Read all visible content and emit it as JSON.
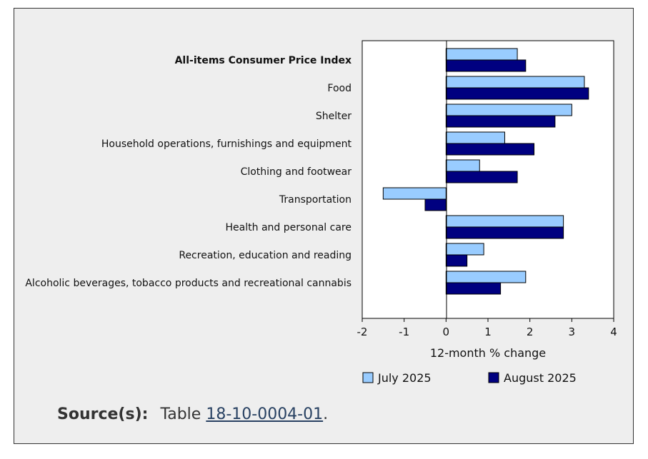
{
  "chart_data": {
    "type": "bar",
    "orientation": "horizontal",
    "categories": [
      "All-items Consumer Price Index",
      "Food",
      "Shelter",
      "Household operations, furnishings and equipment",
      "Clothing and footwear",
      "Transportation",
      "Health and personal care",
      "Recreation, education and reading",
      "Alcoholic beverages, tobacco products and recreational cannabis"
    ],
    "bold_category": "All-items Consumer Price Index",
    "series": [
      {
        "name": "July 2025",
        "color": "#99ccff",
        "values": [
          1.7,
          3.3,
          3.0,
          1.4,
          0.8,
          -1.5,
          2.8,
          0.9,
          1.9
        ]
      },
      {
        "name": "August 2025",
        "color": "#000080",
        "values": [
          1.9,
          3.4,
          2.6,
          2.1,
          1.7,
          -0.5,
          2.8,
          0.5,
          1.3
        ]
      }
    ],
    "xlabel": "12-month % change",
    "xlim": [
      -2,
      4
    ],
    "xticks": [
      "-2",
      "-1",
      "0",
      "1",
      "2",
      "3",
      "4"
    ],
    "grid": false,
    "legend_position": "bottom"
  },
  "source": {
    "label": "Source(s):",
    "prefix": "Table",
    "link_text": "18-10-0004-01",
    "suffix": "."
  }
}
